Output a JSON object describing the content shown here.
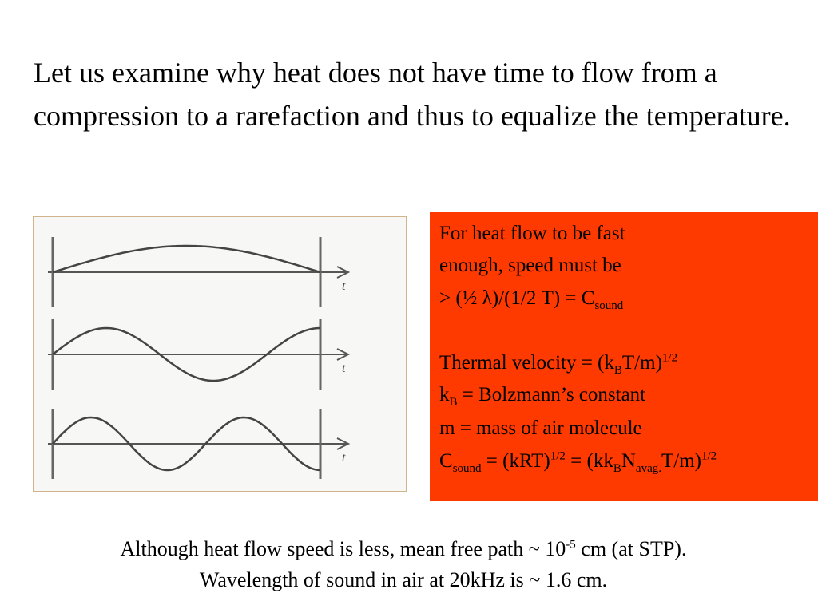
{
  "heading": "Let us examine why heat does not have time to flow from a compression to a rarefaction and thus to equalize the temperature.",
  "figure": {
    "axis_labels": [
      "t",
      "t",
      "t"
    ]
  },
  "box": {
    "lines": [
      [
        "For heat flow to be fast"
      ],
      [
        "enough, speed must be"
      ],
      [
        " > (½ λ)/(1/2 T) = C",
        "sound"
      ],
      [
        "Thermal velocity = (k",
        "B",
        "T/m)",
        "1/2"
      ],
      [
        "k",
        "B",
        " = Bolzmann’s constant"
      ],
      [
        "m = mass of air molecule"
      ],
      [
        "C",
        "sound",
        " = (kRT)",
        "1/2",
        " = (kk",
        "B",
        "N",
        "avag.",
        "T/m)",
        "1/2"
      ]
    ]
  },
  "footer": {
    "line1": [
      "Although heat flow speed is less, mean free path ~ 10",
      "-5",
      " cm (at STP)."
    ],
    "line2": "Wavelength of sound in air at 20kHz is ~ 1.6 cm."
  }
}
